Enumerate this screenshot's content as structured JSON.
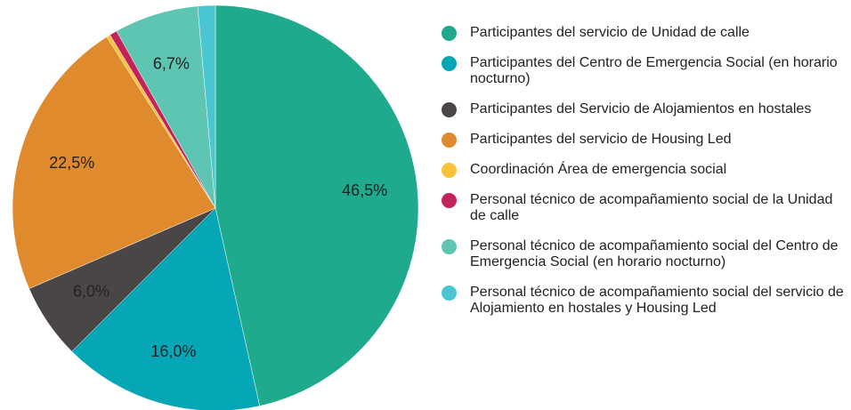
{
  "chart_data": {
    "type": "pie",
    "categories": [
      "Participantes del servicio de Unidad de calle",
      "Participantes del Centro de Emergencia Social (en horario nocturno)",
      "Participantes del Servicio de Alojamientos en hostales",
      "Participantes del servicio de Housing Led",
      "Coordinación Área de emergencia social",
      "Personal técnico de acompañamiento social de la Unidad de calle",
      "Personal técnico de acompañamiento social del Centro de Emergencia Social (en horario nocturno)",
      "Personal técnico de acompañamiento social del servicio de Alojamiento en hostales y Housing Led"
    ],
    "values": [
      46.5,
      16.0,
      6.0,
      22.5,
      0.3,
      0.6,
      6.7,
      1.4
    ],
    "value_labels": [
      "46,5%",
      "16,0%",
      "6,0%",
      "22,5%",
      null,
      null,
      "6,7%",
      null
    ],
    "colors": [
      "#1fa98d",
      "#05a7b7",
      "#4b4646",
      "#e08a2e",
      "#f8c23a",
      "#c2245a",
      "#5ec5b3",
      "#4ac6d3"
    ],
    "legend": "right"
  }
}
